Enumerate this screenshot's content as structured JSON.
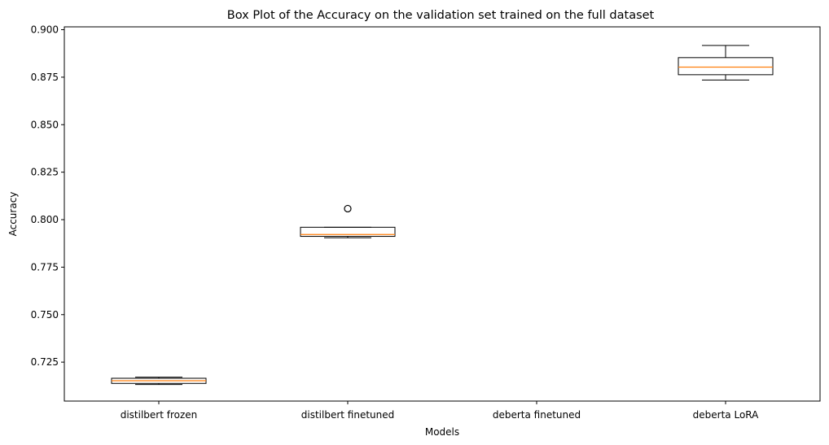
{
  "chart_data": {
    "type": "box",
    "title": "Box Plot of the Accuracy on the validation set trained on the full dataset",
    "xlabel": "Models",
    "ylabel": "Accuracy",
    "ylim": [
      0.7045,
      0.9015
    ],
    "yticks": [
      0.725,
      0.75,
      0.775,
      0.8,
      0.825,
      0.85,
      0.875,
      0.9
    ],
    "ytick_labels": [
      "0.725",
      "0.750",
      "0.775",
      "0.800",
      "0.825",
      "0.850",
      "0.875",
      "0.900"
    ],
    "grid": false,
    "box_color": "#000000",
    "median_color": "#ff7f0e",
    "categories": [
      "distilbert frozen",
      "distilbert finetuned",
      "deberta finetuned",
      "deberta LoRA"
    ],
    "boxes": [
      {
        "whislo": 0.7132,
        "q1": 0.7138,
        "med": 0.7152,
        "q3": 0.7165,
        "whishi": 0.7171,
        "fliers": []
      },
      {
        "whislo": 0.7905,
        "q1": 0.7912,
        "med": 0.7922,
        "q3": 0.796,
        "whishi": 0.796,
        "fliers": [
          0.8058
        ]
      },
      null,
      {
        "whislo": 0.8735,
        "q1": 0.8763,
        "med": 0.8803,
        "q3": 0.8853,
        "whishi": 0.8917,
        "fliers": []
      }
    ]
  }
}
